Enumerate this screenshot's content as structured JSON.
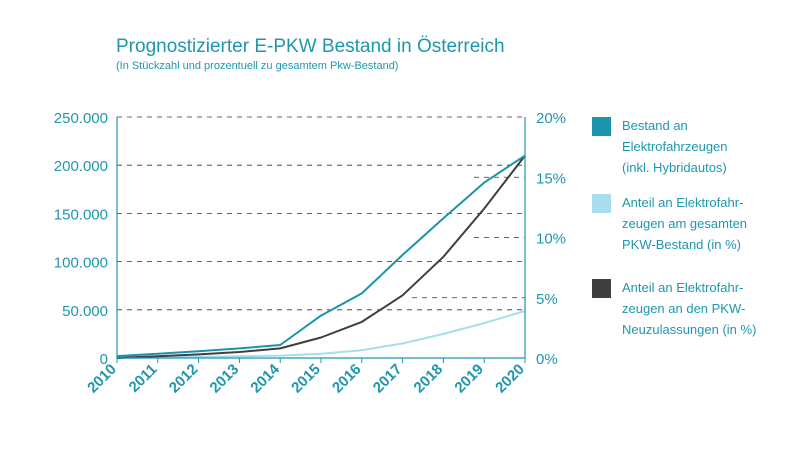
{
  "title": "Prognostizierter E-PKW Bestand in Österreich",
  "subtitle": "(In Stückzahl und prozentuell zu gesamtem Pkw-Bestand)",
  "colors": {
    "text": "#1f97ae",
    "bestand": "#1a94ac",
    "anteil_bestand": "#a8dcef",
    "anteil_neu": "#3f3f3f",
    "grid": "#333333"
  },
  "chart_data": {
    "type": "line",
    "x": [
      "2010",
      "2011",
      "2012",
      "2013",
      "2014",
      "2015",
      "2016",
      "2017",
      "2018",
      "2019",
      "2020"
    ],
    "left_axis": {
      "ylim": [
        0,
        250000
      ],
      "ticks": [
        "0",
        "50.000",
        "100.000",
        "150.000",
        "200.000",
        "250.000"
      ]
    },
    "right_axis": {
      "ylim": [
        0,
        20
      ],
      "ticks": [
        "0%",
        "5%",
        "10%",
        "15%",
        "20%"
      ]
    },
    "grid": true,
    "legend_position": "right",
    "series": [
      {
        "name": "Bestand an Elektrofahrzeugen (inkl. Hybridautos)",
        "axis": "left",
        "color": "#1a94ac",
        "values": [
          2000,
          4500,
          7000,
          10000,
          13500,
          44000,
          67000,
          107000,
          145000,
          182000,
          210000
        ]
      },
      {
        "name": "Anteil an Elektrofahrzeugen am gesamten PKW-Bestand (in %)",
        "axis": "right",
        "color": "#a8dcef",
        "values": [
          0.0,
          0.05,
          0.1,
          0.15,
          0.2,
          0.35,
          0.65,
          1.2,
          2.0,
          2.9,
          3.9
        ]
      },
      {
        "name": "Anteil an Elektrofahrzeugen an den PKW-Neuzulassungen (in %)",
        "axis": "right",
        "color": "#3f3f3f",
        "values": [
          0.0,
          0.15,
          0.3,
          0.5,
          0.8,
          1.7,
          3.0,
          5.2,
          8.4,
          12.4,
          16.8
        ]
      }
    ]
  },
  "legend": [
    {
      "lines": [
        "Bestand an",
        "Elektrofahrzeugen",
        "(inkl. Hybridautos)"
      ],
      "color": "#1a94ac"
    },
    {
      "lines": [
        "Anteil an Elektrofahr-",
        "zeugen am gesamten",
        "PKW-Bestand (in %)"
      ],
      "color": "#a8dcef"
    },
    {
      "lines": [
        "Anteil an Elektrofahr-",
        "zeugen an den PKW-",
        "Neuzulassungen (in %)"
      ],
      "color": "#3f3f3f"
    }
  ]
}
